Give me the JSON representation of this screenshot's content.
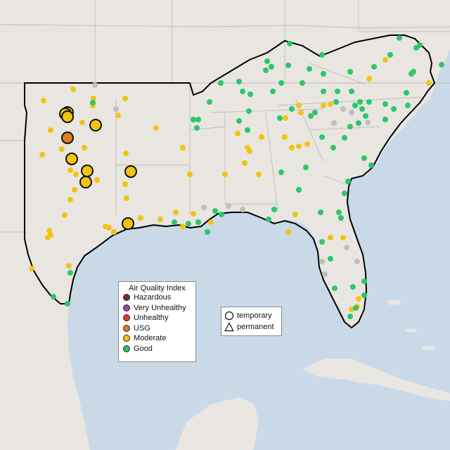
{
  "legend": {
    "title": "Air Quality Index",
    "categories": [
      {
        "label": "Hazardous",
        "color": "#7e2a23"
      },
      {
        "label": "Very Unhealthy",
        "color": "#8b4ca8"
      },
      {
        "label": "Unhealthy",
        "color": "#e0402f"
      },
      {
        "label": "USG",
        "color": "#e07a22"
      },
      {
        "label": "Moderate",
        "color": "#f2c313"
      },
      {
        "label": "Good",
        "color": "#2ec56b"
      }
    ]
  },
  "site_type_legend": {
    "temporary_label": "temporary",
    "permanent_label": "permanent"
  },
  "colors": {
    "land": "#e9e6e1",
    "water": "#c9d9e8",
    "border": "#bdbdbd",
    "region_outline": "#000000",
    "inactive_station": "#bfbfbf"
  }
}
